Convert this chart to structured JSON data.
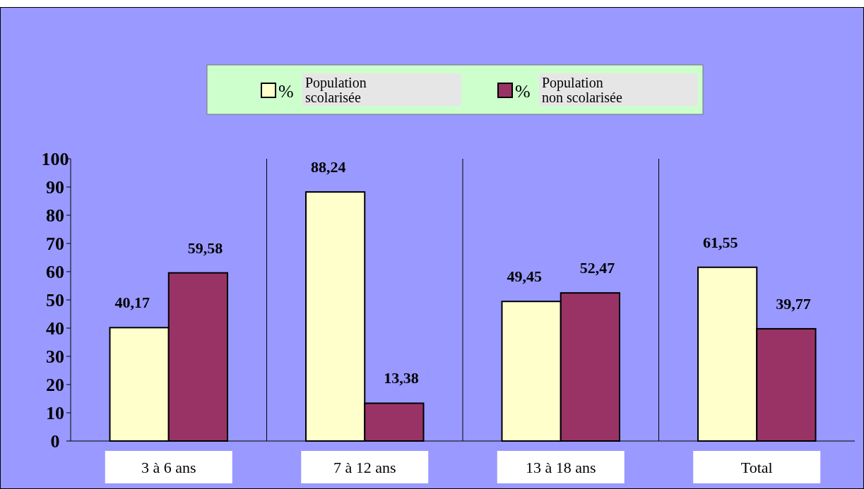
{
  "chart_data": {
    "type": "bar",
    "categories": [
      "3 à 6 ans",
      "7 à 12 ans",
      "13 à 18 ans",
      "Total"
    ],
    "series": [
      {
        "name": "% Population scolarisée",
        "color": "#ffffcc",
        "values": [
          40.17,
          88.24,
          49.45,
          61.55
        ],
        "value_labels": [
          "40,17",
          "88,24",
          "49,45",
          "61,55"
        ]
      },
      {
        "name": "% Population non scolarisée",
        "color": "#993366",
        "values": [
          59.58,
          13.38,
          52.47,
          39.77
        ],
        "value_labels": [
          "59,58",
          "13,38",
          "52,47",
          "39,77"
        ]
      }
    ],
    "ylim": [
      0,
      100
    ],
    "yticks": [
      0,
      10,
      20,
      30,
      40,
      50,
      60,
      70,
      80,
      90,
      100
    ],
    "grid": "x",
    "legend": "top"
  }
}
